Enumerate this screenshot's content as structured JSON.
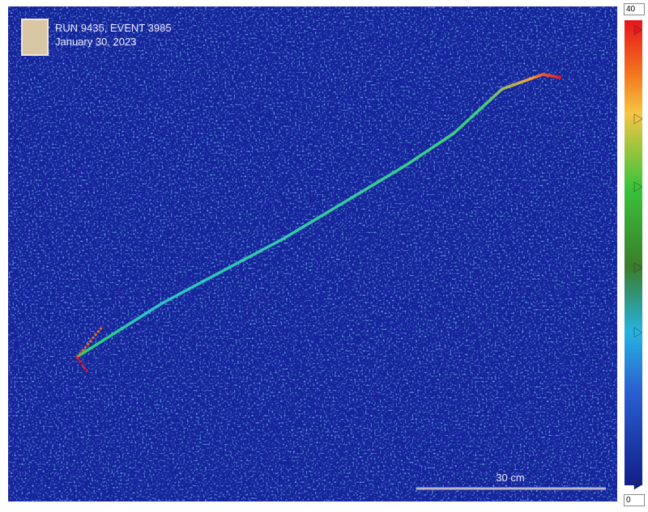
{
  "header": {
    "title": "RUN 9435, EVENT 3985",
    "date": "January 30, 2023"
  },
  "scale_bar": {
    "label": "30 cm"
  },
  "color_scale": {
    "max_input": "40",
    "min_input": "0"
  }
}
